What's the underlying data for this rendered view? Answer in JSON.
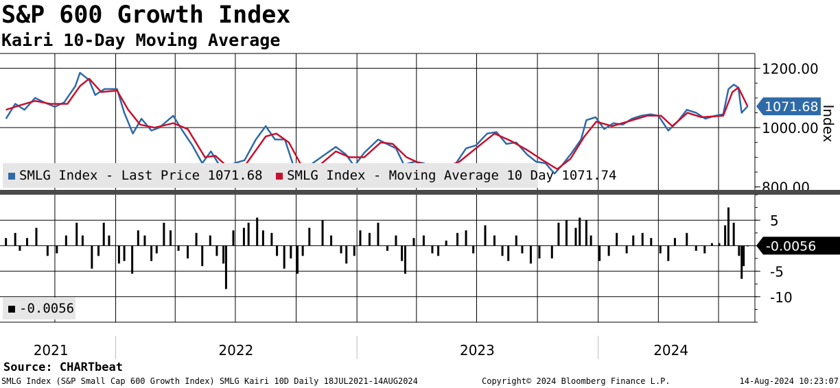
{
  "header": {
    "title": "S&P 600 Growth Index",
    "subtitle": "Kairi 10-Day Moving Average"
  },
  "footer": {
    "source": "Source: CHARTbeat",
    "description": "SMLG Index (S&P Small Cap 600 Growth Index) SMLG Kairi 10D  Daily 18JUL2021-14AUG2024",
    "copyright": "Copyright© 2024 Bloomberg Finance L.P.",
    "timestamp": "14-Aug-2024 10:23:07"
  },
  "colors": {
    "last_price": "#2e6aa8",
    "moving_average": "#c8102e",
    "kairi": "#000000",
    "legend_bg": "#e6e6e6"
  },
  "chart_data": [
    {
      "type": "line",
      "ylabel": "Index",
      "ylim": [
        790,
        1250
      ],
      "yticks": [
        800,
        1000,
        1200
      ],
      "ytick_labels": [
        "800.00",
        "1000.00",
        "1200.00"
      ],
      "x_labels": [
        "2021",
        "2022",
        "2023",
        "2024"
      ],
      "grid": true,
      "series": [
        {
          "name": "SMLG Index - Last Price",
          "legend": "SMLG Index - Last Price 1071.68",
          "last_value": "1071.68",
          "points": [
            [
              "2021-07-19",
              1030
            ],
            [
              "2021-08-02",
              1080
            ],
            [
              "2021-08-16",
              1060
            ],
            [
              "2021-09-01",
              1100
            ],
            [
              "2021-09-15",
              1085
            ],
            [
              "2021-10-01",
              1070
            ],
            [
              "2021-10-15",
              1085
            ],
            [
              "2021-11-01",
              1140
            ],
            [
              "2021-11-08",
              1185
            ],
            [
              "2021-11-22",
              1160
            ],
            [
              "2021-12-01",
              1110
            ],
            [
              "2021-12-15",
              1130
            ],
            [
              "2022-01-03",
              1130
            ],
            [
              "2022-01-14",
              1050
            ],
            [
              "2022-01-27",
              980
            ],
            [
              "2022-02-09",
              1030
            ],
            [
              "2022-02-24",
              990
            ],
            [
              "2022-03-08",
              1000
            ],
            [
              "2022-03-29",
              1040
            ],
            [
              "2022-04-12",
              990
            ],
            [
              "2022-04-27",
              940
            ],
            [
              "2022-05-12",
              880
            ],
            [
              "2022-05-25",
              920
            ],
            [
              "2022-06-16",
              840
            ],
            [
              "2022-06-30",
              880
            ],
            [
              "2022-07-15",
              890
            ],
            [
              "2022-08-01",
              960
            ],
            [
              "2022-08-16",
              1005
            ],
            [
              "2022-08-30",
              960
            ],
            [
              "2022-09-14",
              960
            ],
            [
              "2022-09-30",
              850
            ],
            [
              "2022-10-12",
              840
            ],
            [
              "2022-10-26",
              880
            ],
            [
              "2022-11-14",
              910
            ],
            [
              "2022-11-30",
              935
            ],
            [
              "2022-12-15",
              910
            ],
            [
              "2022-12-28",
              870
            ],
            [
              "2023-01-12",
              915
            ],
            [
              "2023-02-02",
              960
            ],
            [
              "2023-02-15",
              945
            ],
            [
              "2023-03-01",
              930
            ],
            [
              "2023-03-13",
              875
            ],
            [
              "2023-03-29",
              885
            ],
            [
              "2023-04-12",
              880
            ],
            [
              "2023-04-26",
              860
            ],
            [
              "2023-05-10",
              865
            ],
            [
              "2023-05-31",
              880
            ],
            [
              "2023-06-15",
              930
            ],
            [
              "2023-06-30",
              940
            ],
            [
              "2023-07-17",
              980
            ],
            [
              "2023-07-31",
              985
            ],
            [
              "2023-08-15",
              945
            ],
            [
              "2023-08-30",
              950
            ],
            [
              "2023-09-15",
              910
            ],
            [
              "2023-09-29",
              885
            ],
            [
              "2023-10-13",
              880
            ],
            [
              "2023-10-27",
              845
            ],
            [
              "2023-11-08",
              875
            ],
            [
              "2023-11-22",
              915
            ],
            [
              "2023-12-06",
              960
            ],
            [
              "2023-12-14",
              1025
            ],
            [
              "2023-12-28",
              1035
            ],
            [
              "2024-01-10",
              995
            ],
            [
              "2024-01-24",
              1015
            ],
            [
              "2024-02-07",
              1010
            ],
            [
              "2024-02-21",
              1030
            ],
            [
              "2024-03-06",
              1040
            ],
            [
              "2024-03-20",
              1045
            ],
            [
              "2024-04-01",
              1040
            ],
            [
              "2024-04-16",
              990
            ],
            [
              "2024-04-30",
              1020
            ],
            [
              "2024-05-14",
              1060
            ],
            [
              "2024-05-28",
              1050
            ],
            [
              "2024-06-11",
              1030
            ],
            [
              "2024-06-26",
              1040
            ],
            [
              "2024-07-08",
              1045
            ],
            [
              "2024-07-16",
              1130
            ],
            [
              "2024-07-24",
              1145
            ],
            [
              "2024-07-31",
              1135
            ],
            [
              "2024-08-05",
              1050
            ],
            [
              "2024-08-09",
              1060
            ],
            [
              "2024-08-14",
              1071.68
            ]
          ]
        },
        {
          "name": "SMLG Index - Moving Average 10 Day",
          "legend": "SMLG Index - Moving Average 10 Day 1071.74",
          "last_value": "1071.74",
          "points": [
            [
              "2021-07-19",
              1060
            ],
            [
              "2021-08-09",
              1075
            ],
            [
              "2021-09-01",
              1090
            ],
            [
              "2021-09-24",
              1080
            ],
            [
              "2021-10-20",
              1080
            ],
            [
              "2021-11-08",
              1140
            ],
            [
              "2021-11-22",
              1165
            ],
            [
              "2021-12-10",
              1120
            ],
            [
              "2022-01-03",
              1125
            ],
            [
              "2022-01-20",
              1060
            ],
            [
              "2022-02-07",
              1010
            ],
            [
              "2022-03-01",
              1000
            ],
            [
              "2022-03-29",
              1015
            ],
            [
              "2022-04-20",
              995
            ],
            [
              "2022-05-16",
              900
            ],
            [
              "2022-06-01",
              905
            ],
            [
              "2022-06-23",
              860
            ],
            [
              "2022-07-15",
              870
            ],
            [
              "2022-08-16",
              970
            ],
            [
              "2022-09-01",
              980
            ],
            [
              "2022-09-20",
              950
            ],
            [
              "2022-10-12",
              860
            ],
            [
              "2022-11-01",
              865
            ],
            [
              "2022-11-30",
              920
            ],
            [
              "2022-12-21",
              900
            ],
            [
              "2023-01-12",
              900
            ],
            [
              "2023-02-06",
              950
            ],
            [
              "2023-02-24",
              945
            ],
            [
              "2023-03-17",
              900
            ],
            [
              "2023-04-06",
              880
            ],
            [
              "2023-05-10",
              862
            ],
            [
              "2023-06-05",
              885
            ],
            [
              "2023-06-30",
              930
            ],
            [
              "2023-07-28",
              980
            ],
            [
              "2023-08-22",
              955
            ],
            [
              "2023-09-15",
              925
            ],
            [
              "2023-10-09",
              890
            ],
            [
              "2023-10-31",
              860
            ],
            [
              "2023-11-20",
              895
            ],
            [
              "2023-12-11",
              970
            ],
            [
              "2023-12-29",
              1020
            ],
            [
              "2024-01-22",
              1005
            ],
            [
              "2024-02-14",
              1020
            ],
            [
              "2024-03-15",
              1040
            ],
            [
              "2024-04-05",
              1040
            ],
            [
              "2024-04-22",
              1005
            ],
            [
              "2024-05-15",
              1050
            ],
            [
              "2024-06-05",
              1035
            ],
            [
              "2024-07-08",
              1040
            ],
            [
              "2024-07-22",
              1120
            ],
            [
              "2024-07-31",
              1135
            ],
            [
              "2024-08-14",
              1071.74
            ]
          ]
        }
      ]
    },
    {
      "type": "bar",
      "ylim": [
        -15,
        10
      ],
      "yticks": [
        5,
        -5,
        -10
      ],
      "ytick_labels": [
        "5",
        "-5",
        "-10"
      ],
      "grid": true,
      "series": [
        {
          "name": "Kairi 10D",
          "legend": "-0.0056",
          "last_value": "-0.0056",
          "points": [
            [
              "2021-07-19",
              1.5
            ],
            [
              "2021-08-02",
              2.5
            ],
            [
              "2021-08-09",
              -1.0
            ],
            [
              "2021-08-20",
              1.5
            ],
            [
              "2021-09-03",
              3.5
            ],
            [
              "2021-09-20",
              -2.0
            ],
            [
              "2021-10-04",
              -1.5
            ],
            [
              "2021-10-18",
              2.0
            ],
            [
              "2021-11-03",
              4.5
            ],
            [
              "2021-11-12",
              2.0
            ],
            [
              "2021-11-26",
              -4.5
            ],
            [
              "2021-12-06",
              -2.0
            ],
            [
              "2021-12-14",
              4.5
            ],
            [
              "2021-12-22",
              2.0
            ],
            [
              "2022-01-06",
              -3.5
            ],
            [
              "2022-01-14",
              -3.0
            ],
            [
              "2022-01-26",
              -5.5
            ],
            [
              "2022-02-04",
              3.0
            ],
            [
              "2022-02-14",
              2.0
            ],
            [
              "2022-02-24",
              -3.0
            ],
            [
              "2022-03-04",
              -1.5
            ],
            [
              "2022-03-15",
              4.5
            ],
            [
              "2022-03-25",
              3.0
            ],
            [
              "2022-04-06",
              -1.0
            ],
            [
              "2022-04-20",
              -2.5
            ],
            [
              "2022-05-03",
              2.5
            ],
            [
              "2022-05-12",
              -4.0
            ],
            [
              "2022-05-24",
              2.0
            ],
            [
              "2022-06-03",
              -2.0
            ],
            [
              "2022-06-13",
              -3.5
            ],
            [
              "2022-06-17",
              -8.5
            ],
            [
              "2022-06-28",
              3.0
            ],
            [
              "2022-07-14",
              3.5
            ],
            [
              "2022-07-21",
              4.5
            ],
            [
              "2022-08-03",
              5.5
            ],
            [
              "2022-08-12",
              3.0
            ],
            [
              "2022-08-25",
              2.5
            ],
            [
              "2022-09-02",
              -2.0
            ],
            [
              "2022-09-13",
              -4.5
            ],
            [
              "2022-09-23",
              -2.5
            ],
            [
              "2022-10-03",
              -5.5
            ],
            [
              "2022-10-11",
              -2.0
            ],
            [
              "2022-10-21",
              3.5
            ],
            [
              "2022-11-10",
              5.0
            ],
            [
              "2022-11-23",
              2.0
            ],
            [
              "2022-12-08",
              -1.5
            ],
            [
              "2022-12-16",
              -3.5
            ],
            [
              "2022-12-28",
              -2.0
            ],
            [
              "2023-01-06",
              3.0
            ],
            [
              "2023-01-20",
              2.5
            ],
            [
              "2023-02-02",
              4.5
            ],
            [
              "2023-02-16",
              -1.0
            ],
            [
              "2023-03-01",
              2.0
            ],
            [
              "2023-03-10",
              -3.0
            ],
            [
              "2023-03-15",
              -5.5
            ],
            [
              "2023-03-28",
              1.5
            ],
            [
              "2023-04-12",
              2.0
            ],
            [
              "2023-04-25",
              -1.5
            ],
            [
              "2023-05-04",
              -2.0
            ],
            [
              "2023-05-16",
              1.0
            ],
            [
              "2023-06-02",
              2.5
            ],
            [
              "2023-06-15",
              3.0
            ],
            [
              "2023-06-26",
              -1.5
            ],
            [
              "2023-07-14",
              4.0
            ],
            [
              "2023-07-28",
              2.0
            ],
            [
              "2023-08-09",
              -2.0
            ],
            [
              "2023-08-18",
              -3.0
            ],
            [
              "2023-08-30",
              2.0
            ],
            [
              "2023-09-08",
              -1.5
            ],
            [
              "2023-09-21",
              -3.5
            ],
            [
              "2023-10-04",
              -2.5
            ],
            [
              "2023-10-23",
              -2.5
            ],
            [
              "2023-11-02",
              4.5
            ],
            [
              "2023-11-14",
              5.0
            ],
            [
              "2023-11-28",
              3.5
            ],
            [
              "2023-12-04",
              5.5
            ],
            [
              "2023-12-14",
              5.0
            ],
            [
              "2023-12-21",
              2.0
            ],
            [
              "2024-01-03",
              -3.0
            ],
            [
              "2024-01-17",
              -2.0
            ],
            [
              "2024-01-29",
              2.5
            ],
            [
              "2024-02-13",
              -1.5
            ],
            [
              "2024-02-23",
              2.0
            ],
            [
              "2024-03-08",
              2.5
            ],
            [
              "2024-03-21",
              1.5
            ],
            [
              "2024-04-04",
              -1.5
            ],
            [
              "2024-04-16",
              -3.0
            ],
            [
              "2024-04-26",
              1.5
            ],
            [
              "2024-05-14",
              2.5
            ],
            [
              "2024-05-28",
              -1.0
            ],
            [
              "2024-06-10",
              -1.5
            ],
            [
              "2024-06-21",
              0.5
            ],
            [
              "2024-07-02",
              0.5
            ],
            [
              "2024-07-11",
              4.0
            ],
            [
              "2024-07-16",
              7.5
            ],
            [
              "2024-07-24",
              4.5
            ],
            [
              "2024-08-01",
              -2.0
            ],
            [
              "2024-08-05",
              -6.5
            ],
            [
              "2024-08-08",
              -4.0
            ],
            [
              "2024-08-14",
              -0.0056
            ]
          ]
        }
      ]
    }
  ]
}
